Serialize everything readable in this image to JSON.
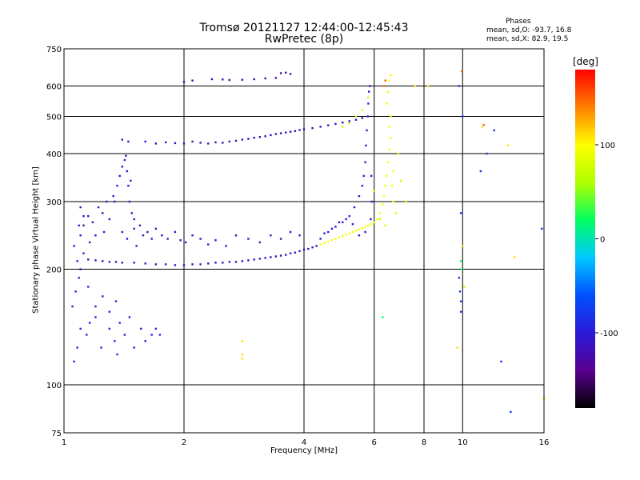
{
  "title": {
    "line1": "Tromsø 20121127 12:44:00-12:45:43",
    "line2": "RwPretec (8p)"
  },
  "stats": {
    "title": "Phases",
    "o_line": "mean, sd,O: -93.7, 16.8",
    "x_line": "mean, sd,X: 82.9, 19.5"
  },
  "colorbar": {
    "label": "[deg]",
    "ticks": [
      "100",
      "0",
      "-100"
    ],
    "tick_values": [
      100,
      0,
      -100
    ],
    "range": [
      -180,
      180
    ],
    "colormap": [
      "#000000",
      "#5a0090",
      "#2a1ad8",
      "#0050ff",
      "#00c8ff",
      "#00ff60",
      "#b0ff00",
      "#ffff00",
      "#ff8000",
      "#ff0000"
    ]
  },
  "chart_data": {
    "type": "scatter",
    "title": "Tromsø 20121127 12:44:00-12:45:43",
    "subtitle": "RwPretec (8p)",
    "xlabel": "Frequency [MHz]",
    "ylabel": "Stationary phase Virtual Height [km]",
    "x_scale": "log",
    "y_scale": "log",
    "xlim": [
      1,
      16
    ],
    "ylim": [
      75,
      750
    ],
    "xticks": [
      1,
      2,
      4,
      6,
      8,
      10,
      16
    ],
    "xtick_labels": [
      "1",
      "2",
      "4",
      "6",
      "8",
      "10",
      "16"
    ],
    "yticks": [
      75,
      100,
      200,
      300,
      400,
      500,
      600,
      750
    ],
    "ytick_labels": [
      "75",
      "100",
      "200",
      "300",
      "400",
      "500",
      "600",
      "750"
    ],
    "x_gridlines": [
      2,
      4,
      6,
      8,
      10
    ],
    "y_gridlines": [
      100,
      200,
      300,
      400,
      500,
      600
    ],
    "grid": true,
    "color_encoding": "phase [deg]",
    "series": [
      {
        "phase": -95,
        "points": [
          [
            1.06,
            115
          ],
          [
            1.08,
            125
          ],
          [
            1.1,
            140
          ],
          [
            1.05,
            160
          ],
          [
            1.07,
            175
          ],
          [
            1.09,
            190
          ],
          [
            1.1,
            200
          ],
          [
            1.08,
            210
          ],
          [
            1.12,
            220
          ],
          [
            1.06,
            230
          ],
          [
            1.1,
            245
          ],
          [
            1.09,
            260
          ],
          [
            1.12,
            275
          ],
          [
            1.1,
            290
          ],
          [
            1.14,
            135
          ],
          [
            1.16,
            145
          ],
          [
            1.2,
            150
          ],
          [
            1.24,
            125
          ],
          [
            1.3,
            140
          ],
          [
            1.34,
            130
          ],
          [
            1.38,
            145
          ],
          [
            1.42,
            135
          ],
          [
            1.46,
            150
          ],
          [
            1.5,
            125
          ],
          [
            1.56,
            140
          ],
          [
            1.6,
            130
          ],
          [
            1.66,
            135
          ],
          [
            1.7,
            140
          ],
          [
            1.74,
            135
          ],
          [
            1.36,
            120
          ],
          [
            1.2,
            160
          ],
          [
            1.25,
            170
          ],
          [
            1.3,
            155
          ],
          [
            1.15,
            180
          ],
          [
            1.35,
            165
          ]
        ]
      },
      {
        "phase": -110,
        "points": [
          [
            1.12,
            260
          ],
          [
            1.15,
            275
          ],
          [
            1.18,
            265
          ],
          [
            1.22,
            290
          ],
          [
            1.25,
            280
          ],
          [
            1.28,
            300
          ],
          [
            1.3,
            270
          ],
          [
            1.33,
            310
          ],
          [
            1.36,
            330
          ],
          [
            1.38,
            350
          ],
          [
            1.4,
            370
          ],
          [
            1.42,
            385
          ],
          [
            1.44,
            360
          ],
          [
            1.45,
            330
          ],
          [
            1.46,
            300
          ],
          [
            1.48,
            280
          ],
          [
            1.5,
            270
          ],
          [
            1.47,
            340
          ],
          [
            1.43,
            395
          ],
          [
            1.34,
            300
          ],
          [
            1.26,
            250
          ],
          [
            1.2,
            245
          ],
          [
            1.16,
            235
          ],
          [
            1.4,
            250
          ],
          [
            1.44,
            240
          ],
          [
            1.5,
            255
          ],
          [
            1.52,
            230
          ],
          [
            1.55,
            260
          ],
          [
            1.58,
            245
          ],
          [
            1.62,
            250
          ],
          [
            1.66,
            240
          ],
          [
            1.7,
            255
          ],
          [
            1.76,
            245
          ],
          [
            1.82,
            240
          ],
          [
            1.9,
            250
          ],
          [
            1.96,
            238
          ],
          [
            2.02,
            235
          ],
          [
            2.1,
            245
          ],
          [
            2.2,
            240
          ],
          [
            2.3,
            232
          ],
          [
            2.4,
            238
          ],
          [
            2.55,
            230
          ],
          [
            2.7,
            245
          ],
          [
            2.9,
            240
          ],
          [
            3.1,
            235
          ],
          [
            3.3,
            245
          ],
          [
            3.5,
            240
          ],
          [
            3.7,
            250
          ],
          [
            3.9,
            245
          ]
        ]
      },
      {
        "phase": -112,
        "points": [
          [
            1.15,
            212
          ],
          [
            1.2,
            211
          ],
          [
            1.25,
            210
          ],
          [
            1.3,
            209
          ],
          [
            1.35,
            209
          ],
          [
            1.4,
            208
          ],
          [
            1.5,
            208
          ],
          [
            1.6,
            207
          ],
          [
            1.7,
            206
          ],
          [
            1.8,
            206
          ],
          [
            1.9,
            205
          ],
          [
            2.0,
            205
          ],
          [
            2.1,
            206
          ],
          [
            2.2,
            206
          ],
          [
            2.3,
            207
          ],
          [
            2.4,
            208
          ],
          [
            2.5,
            208
          ],
          [
            2.6,
            209
          ],
          [
            2.7,
            209
          ],
          [
            2.8,
            210
          ],
          [
            2.9,
            211
          ],
          [
            3.0,
            212
          ],
          [
            3.1,
            213
          ],
          [
            3.2,
            214
          ],
          [
            3.3,
            215
          ],
          [
            3.4,
            216
          ],
          [
            3.5,
            217
          ],
          [
            3.6,
            218
          ],
          [
            3.7,
            220
          ],
          [
            3.8,
            221
          ],
          [
            3.9,
            223
          ],
          [
            4.0,
            225
          ],
          [
            4.1,
            226
          ],
          [
            4.2,
            228
          ],
          [
            4.3,
            230
          ]
        ]
      },
      {
        "phase": -100,
        "points": [
          [
            4.4,
            240
          ],
          [
            4.6,
            250
          ],
          [
            4.8,
            258
          ],
          [
            5.0,
            265
          ],
          [
            5.2,
            275
          ],
          [
            5.35,
            290
          ],
          [
            5.5,
            310
          ],
          [
            5.6,
            330
          ],
          [
            5.65,
            350
          ],
          [
            5.7,
            380
          ],
          [
            5.72,
            420
          ],
          [
            5.75,
            460
          ],
          [
            5.78,
            500
          ],
          [
            5.8,
            540
          ],
          [
            5.82,
            580
          ],
          [
            5.85,
            600
          ],
          [
            5.9,
            350
          ],
          [
            5.92,
            300
          ],
          [
            5.88,
            270
          ],
          [
            5.7,
            250
          ],
          [
            5.5,
            245
          ],
          [
            5.3,
            262
          ],
          [
            5.1,
            270
          ],
          [
            4.9,
            265
          ],
          [
            4.7,
            255
          ],
          [
            4.5,
            248
          ]
        ]
      },
      {
        "phase": -115,
        "points": [
          [
            1.4,
            435
          ],
          [
            1.45,
            430
          ],
          [
            1.6,
            430
          ],
          [
            1.7,
            425
          ],
          [
            1.8,
            428
          ],
          [
            1.9,
            426
          ],
          [
            2.0,
            425
          ],
          [
            2.1,
            430
          ],
          [
            2.2,
            427
          ],
          [
            2.3,
            425
          ],
          [
            2.4,
            428
          ],
          [
            2.5,
            427
          ],
          [
            2.6,
            430
          ],
          [
            2.7,
            432
          ],
          [
            2.8,
            435
          ],
          [
            2.9,
            437
          ],
          [
            3.0,
            440
          ],
          [
            3.1,
            442
          ],
          [
            3.2,
            444
          ],
          [
            3.3,
            447
          ],
          [
            3.4,
            450
          ],
          [
            3.5,
            452
          ],
          [
            3.6,
            454
          ],
          [
            3.7,
            456
          ],
          [
            3.8,
            458
          ],
          [
            3.9,
            461
          ],
          [
            4.0,
            463
          ],
          [
            4.2,
            466
          ],
          [
            4.4,
            470
          ],
          [
            4.6,
            474
          ],
          [
            4.8,
            478
          ],
          [
            5.0,
            482
          ],
          [
            5.2,
            486
          ],
          [
            5.4,
            490
          ],
          [
            5.6,
            495
          ]
        ]
      },
      {
        "phase": -120,
        "points": [
          [
            2.0,
            615
          ],
          [
            2.1,
            620
          ],
          [
            2.35,
            625
          ],
          [
            2.5,
            624
          ],
          [
            2.6,
            622
          ],
          [
            2.8,
            623
          ],
          [
            3.0,
            625
          ],
          [
            3.2,
            628
          ],
          [
            3.4,
            630
          ],
          [
            3.5,
            648
          ],
          [
            3.6,
            650
          ],
          [
            3.7,
            645
          ]
        ]
      },
      {
        "phase": 95,
        "points": [
          [
            4.4,
            232
          ],
          [
            4.5,
            234
          ],
          [
            4.6,
            236
          ],
          [
            4.7,
            238
          ],
          [
            4.8,
            240
          ],
          [
            4.9,
            242
          ],
          [
            5.0,
            244
          ],
          [
            5.1,
            246
          ],
          [
            5.2,
            248
          ],
          [
            5.3,
            250
          ],
          [
            5.4,
            252
          ],
          [
            5.5,
            254
          ],
          [
            5.6,
            256
          ],
          [
            5.7,
            258
          ],
          [
            5.8,
            260
          ],
          [
            5.9,
            262
          ],
          [
            6.0,
            265
          ],
          [
            6.1,
            270
          ],
          [
            6.2,
            280
          ],
          [
            6.3,
            295
          ],
          [
            6.35,
            310
          ],
          [
            6.4,
            330
          ],
          [
            6.45,
            350
          ],
          [
            6.5,
            380
          ],
          [
            6.55,
            410
          ],
          [
            6.6,
            440
          ],
          [
            6.55,
            470
          ],
          [
            6.6,
            500
          ],
          [
            6.45,
            540
          ],
          [
            6.5,
            580
          ],
          [
            6.55,
            620
          ],
          [
            6.6,
            640
          ],
          [
            6.7,
            300
          ],
          [
            6.65,
            330
          ],
          [
            6.7,
            360
          ]
        ]
      },
      {
        "phase": 70,
        "points": [
          [
            5.0,
            470
          ],
          [
            5.2,
            480
          ],
          [
            5.4,
            500
          ],
          [
            5.6,
            520
          ],
          [
            5.8,
            560
          ],
          [
            6.0,
            320
          ],
          [
            6.2,
            270
          ],
          [
            6.4,
            260
          ],
          [
            6.8,
            280
          ],
          [
            7.0,
            340
          ],
          [
            6.9,
            400
          ],
          [
            7.2,
            300
          ]
        ]
      },
      {
        "phase": -80,
        "points": [
          [
            9.8,
            190
          ],
          [
            9.85,
            175
          ],
          [
            9.9,
            165
          ],
          [
            9.9,
            155
          ],
          [
            10.0,
            500
          ],
          [
            9.8,
            600
          ],
          [
            9.9,
            280
          ],
          [
            11.1,
            360
          ],
          [
            11.5,
            400
          ],
          [
            12.0,
            460
          ],
          [
            12.5,
            115
          ],
          [
            13.2,
            85
          ],
          [
            15.8,
            255
          ]
        ]
      },
      {
        "phase": 110,
        "points": [
          [
            2.8,
            130
          ],
          [
            2.8,
            120
          ],
          [
            2.8,
            117
          ],
          [
            9.7,
            125
          ],
          [
            10.0,
            230
          ],
          [
            11.2,
            470
          ],
          [
            13.0,
            420
          ],
          [
            13.5,
            215
          ],
          [
            16.0,
            92
          ],
          [
            8.2,
            600
          ],
          [
            7.6,
            600
          ],
          [
            10.1,
            180
          ]
        ]
      },
      {
        "phase": 150,
        "points": [
          [
            9.95,
            655
          ],
          [
            6.4,
            620
          ],
          [
            11.3,
            475
          ],
          [
            6.35,
            600
          ]
        ]
      },
      {
        "phase": 20,
        "points": [
          [
            6.3,
            150
          ],
          [
            9.95,
            200
          ],
          [
            9.9,
            210
          ]
        ]
      }
    ]
  }
}
